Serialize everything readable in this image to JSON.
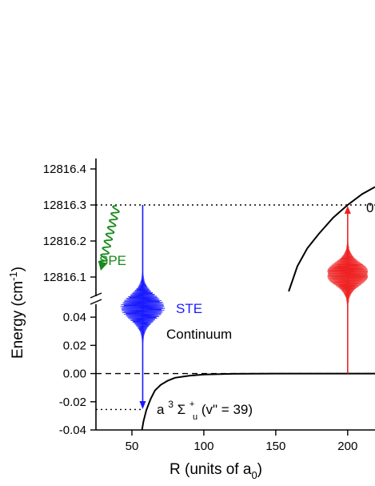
{
  "chart_data": {
    "type": "line",
    "xlabel": "R (units of a",
    "xlabel_sub": "0",
    "xlabel_close": ")",
    "ylabel": "Energy (cm",
    "ylabel_sup": "-1",
    "ylabel_close": ")",
    "x_axis": {
      "range": [
        25,
        219
      ],
      "ticks": [
        50,
        100,
        150,
        200
      ],
      "tick_labels": [
        "50",
        "100",
        "150",
        "200"
      ]
    },
    "y_axis_lower": {
      "range": [
        -0.04,
        0.052
      ],
      "ticks": [
        -0.04,
        -0.02,
        0.0,
        0.02,
        0.04
      ],
      "tick_labels": [
        "-0.04",
        "-0.02",
        "0.00",
        "0.02",
        "0.04"
      ]
    },
    "y_axis_upper": {
      "range": [
        12816.06,
        12816.42
      ],
      "ticks": [
        12816.1,
        12816.2,
        12816.3,
        12816.4
      ],
      "tick_labels": [
        "12816.1",
        "12816.2",
        "12816.3",
        "12816.4"
      ]
    },
    "series": [
      {
        "role": "ground-potential",
        "points": [
          [
            57,
            -0.04
          ],
          [
            58,
            -0.034
          ],
          [
            60,
            -0.026
          ],
          [
            63,
            -0.018
          ],
          [
            66,
            -0.012
          ],
          [
            70,
            -0.008
          ],
          [
            75,
            -0.005
          ],
          [
            80,
            -0.003
          ],
          [
            90,
            -0.0015
          ],
          [
            100,
            -0.0007
          ],
          [
            120,
            -0.0002
          ],
          [
            150,
            0
          ],
          [
            219,
            0
          ]
        ]
      },
      {
        "role": "excited-potential",
        "points": [
          [
            159,
            12816.06
          ],
          [
            165,
            12816.13
          ],
          [
            172,
            12816.18
          ],
          [
            180,
            12816.22
          ],
          [
            190,
            12816.265
          ],
          [
            200,
            12816.3
          ],
          [
            210,
            12816.33
          ],
          [
            219,
            12816.35
          ]
        ]
      }
    ],
    "reference_lines": [
      {
        "axis": "lower",
        "y": 0.0,
        "style": "dashed",
        "label": "Continuum"
      },
      {
        "axis": "upper",
        "y": 12816.3,
        "style": "dotted"
      },
      {
        "axis": "lower",
        "y": -0.0255,
        "style": "dotted",
        "x_end": 57
      }
    ],
    "annotations": {
      "spe": {
        "label": "SPE",
        "color": "#1a8a1a"
      },
      "ste": {
        "label": "STE",
        "color": "#1a1aff"
      },
      "continuum": {
        "label": "Continuum"
      },
      "bound_state": {
        "prefix": "a ",
        "sup_left": "3",
        "symbol": "Σ",
        "sub": "u",
        "sup": "+",
        "suffix": "(v\" = 39)"
      },
      "right_edge_label": "0",
      "pump_color": "#ee2222"
    }
  }
}
